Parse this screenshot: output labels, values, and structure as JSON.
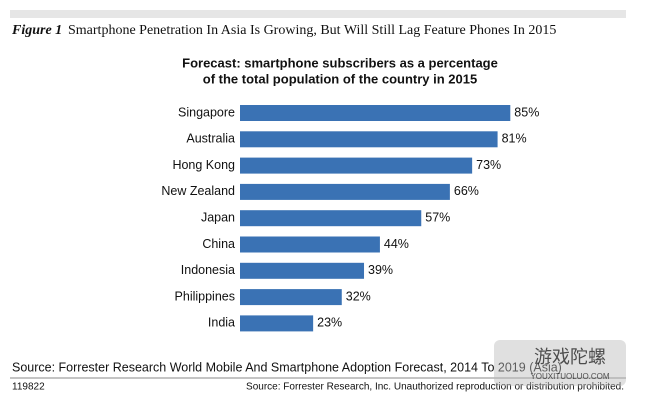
{
  "figure_label": "Figure 1",
  "figure_title": "Smartphone Penetration In Asia Is Growing, But Will Still Lag Feature Phones In 2015",
  "chart_data": {
    "type": "bar",
    "orientation": "horizontal",
    "title": [
      "Forecast: smartphone subscribers as a percentage",
      "of the total population of the country in 2015"
    ],
    "categories": [
      "Singapore",
      "Australia",
      "Hong Kong",
      "New Zealand",
      "Japan",
      "China",
      "Indonesia",
      "Philippines",
      "India"
    ],
    "values": [
      85,
      81,
      73,
      66,
      57,
      44,
      39,
      32,
      23
    ],
    "value_labels": [
      "85%",
      "81%",
      "73%",
      "66%",
      "57%",
      "44%",
      "39%",
      "32%",
      "23%"
    ],
    "color": "#3a72b4"
  },
  "source": "Source: Forrester Research World Mobile And Smartphone Adoption Forecast, 2014 To 2019 (Asia)",
  "footer_id": "119822",
  "footer_note": "Source: Forrester Research, Inc. Unauthorized reproduction or distribution prohibited.",
  "watermark": [
    "游戏陀螺",
    "YOUXITUOLUO.COM"
  ]
}
